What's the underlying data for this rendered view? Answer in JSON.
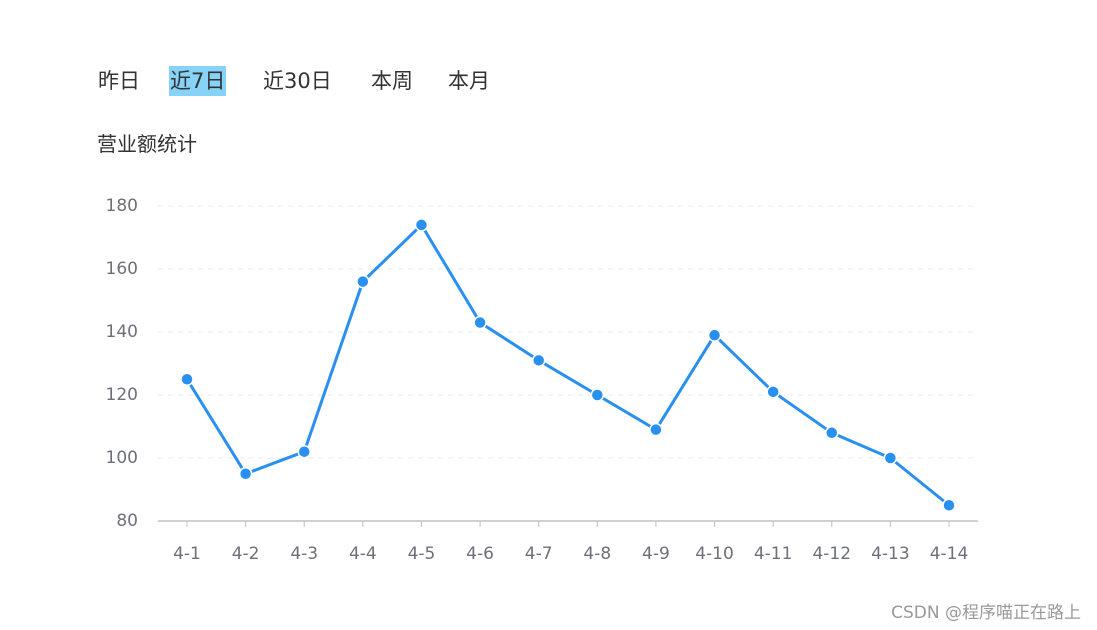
{
  "tabs": {
    "items": [
      "昨日",
      "近7日",
      "近30日",
      "本周",
      "本月"
    ],
    "active": 1
  },
  "chart_data": {
    "type": "line",
    "title": "营业额统计",
    "categories": [
      "4-1",
      "4-2",
      "4-3",
      "4-4",
      "4-5",
      "4-6",
      "4-7",
      "4-8",
      "4-9",
      "4-10",
      "4-11",
      "4-12",
      "4-13",
      "4-14"
    ],
    "values": [
      125,
      95,
      102,
      156,
      174,
      143,
      131,
      120,
      109,
      139,
      121,
      108,
      100,
      85
    ],
    "color": "#2a90ef",
    "ylim": [
      80,
      180
    ],
    "yticks": [
      80,
      100,
      120,
      140,
      160,
      180
    ],
    "grid": true
  },
  "watermark": "CSDN @程序喵正在路上"
}
